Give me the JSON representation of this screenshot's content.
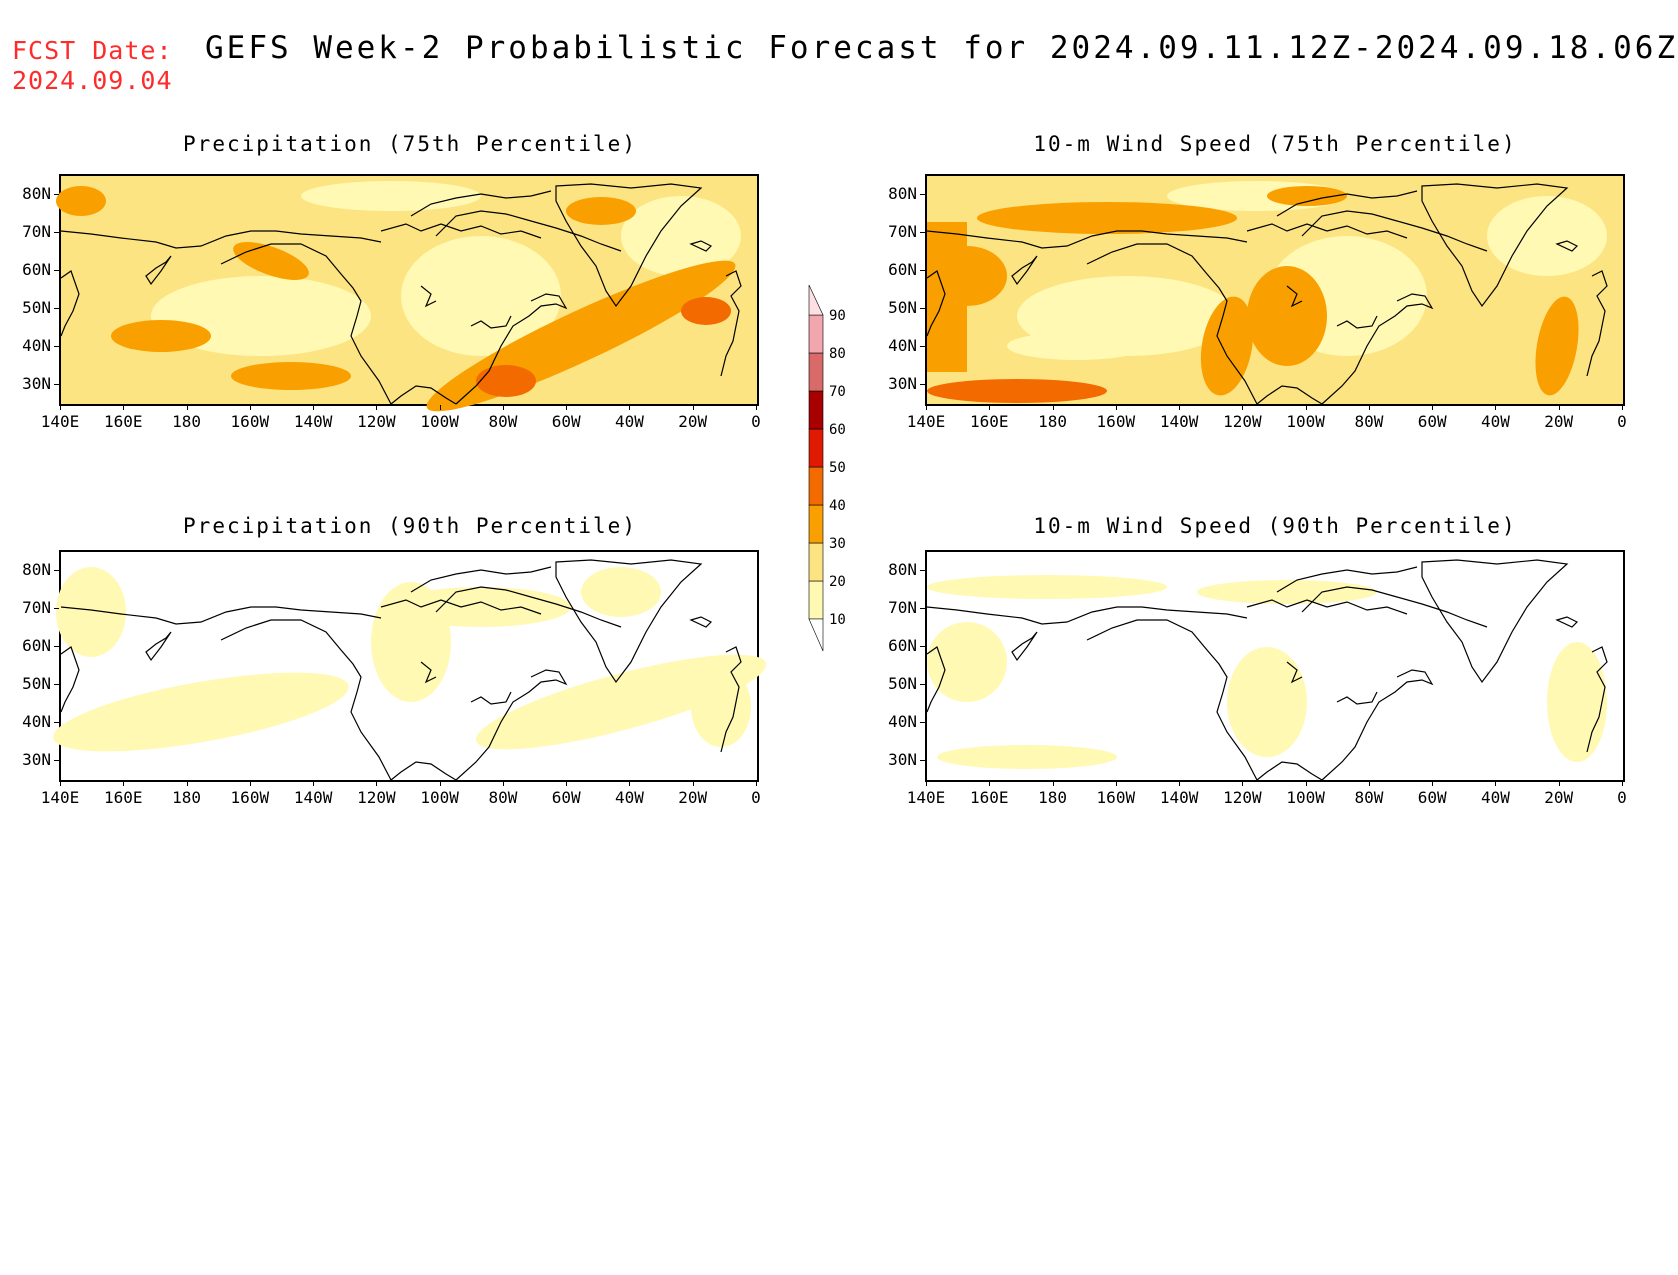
{
  "header": {
    "fcst_label": "FCST Date:",
    "fcst_date": "2024.09.04",
    "title": "GEFS Week-2 Probabilistic Forecast for 2024.09.11.12Z-2024.09.18.06Z"
  },
  "panels": [
    {
      "title": "Precipitation (75th Percentile)",
      "intensity": "high"
    },
    {
      "title": "10-m Wind Speed (75th Percentile)",
      "intensity": "high"
    },
    {
      "title": "Precipitation (90th Percentile)",
      "intensity": "low"
    },
    {
      "title": "10-m Wind Speed (90th Percentile)",
      "intensity": "low"
    }
  ],
  "lat_labels": [
    "80N",
    "70N",
    "60N",
    "50N",
    "40N",
    "30N"
  ],
  "lon_labels": [
    "140E",
    "160E",
    "180",
    "160W",
    "140W",
    "120W",
    "100W",
    "80W",
    "60W",
    "40W",
    "20W",
    "0"
  ],
  "colorbar": {
    "levels": [
      "10",
      "20",
      "30",
      "40",
      "50",
      "60",
      "70",
      "80",
      "90"
    ],
    "colors": [
      "#fff9b4",
      "#fde482",
      "#f9a000",
      "#f26a00",
      "#e01a00",
      "#a80000",
      "#d86a6a",
      "#f2a6ae",
      "#fde0e4"
    ]
  }
}
